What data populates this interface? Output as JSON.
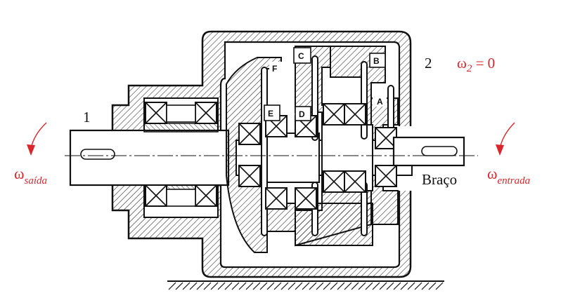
{
  "labels": {
    "link1": "1",
    "link2": "2",
    "omega2_lhs": "ω",
    "omega2_sub": "2",
    "omega2_rhs": " = 0",
    "out_omega": "ω",
    "out_sub": "saída",
    "in_omega": "ω",
    "in_sub": "entrada",
    "arm": "Braço",
    "gear_a": "A",
    "gear_b": "B",
    "gear_c": "C",
    "gear_d": "D",
    "gear_e": "E",
    "gear_f": "F"
  },
  "colors": {
    "ink": "#111111",
    "accent": "#d8262c",
    "hatch": "#222222",
    "background": "#ffffff"
  },
  "icons": {
    "output_arrow": "curved-arrow-down-left",
    "input_arrow": "curved-arrow-down-left",
    "ground": "ground-hatch"
  }
}
